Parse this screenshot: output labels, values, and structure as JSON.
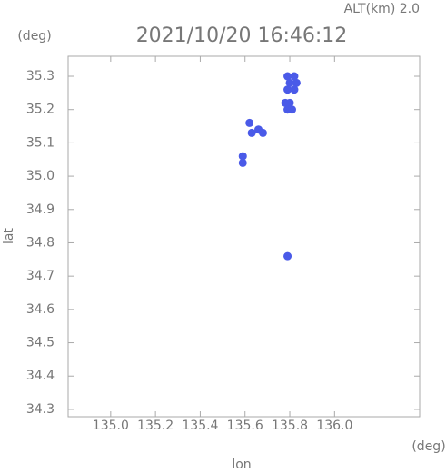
{
  "chart_data": {
    "type": "scatter",
    "subtitle": "ALT(km) 2.0",
    "title": "2021/10/20 16:46:12",
    "x_unit": "(deg)",
    "y_unit": "(deg)",
    "x_label": "lon",
    "y_label": "lat",
    "color": "#4a5ae8",
    "x": [
      135.79,
      135.82,
      135.8,
      135.83,
      135.79,
      135.82,
      135.78,
      135.8,
      135.79,
      135.81,
      135.66,
      135.68,
      135.59,
      135.62,
      135.59,
      135.79,
      135.63
    ],
    "y": [
      35.3,
      35.3,
      35.28,
      35.28,
      35.26,
      35.26,
      35.22,
      35.22,
      35.2,
      35.2,
      35.14,
      35.13,
      35.06,
      35.16,
      35.04,
      34.76,
      35.13
    ],
    "xlim": [
      134.81,
      136.38
    ],
    "ylim": [
      34.278,
      35.36
    ],
    "xticks": [
      {
        "value": 135,
        "label": "135.0"
      },
      135.2,
      135.4,
      135.6,
      135.8,
      {
        "value": 136,
        "label": "136.0"
      }
    ],
    "yticks": [
      34.3,
      34.4,
      34.5,
      34.6,
      34.7,
      34.8,
      34.9,
      {
        "value": 35,
        "label": "35.0"
      },
      35.1,
      35.2,
      35.3
    ]
  }
}
